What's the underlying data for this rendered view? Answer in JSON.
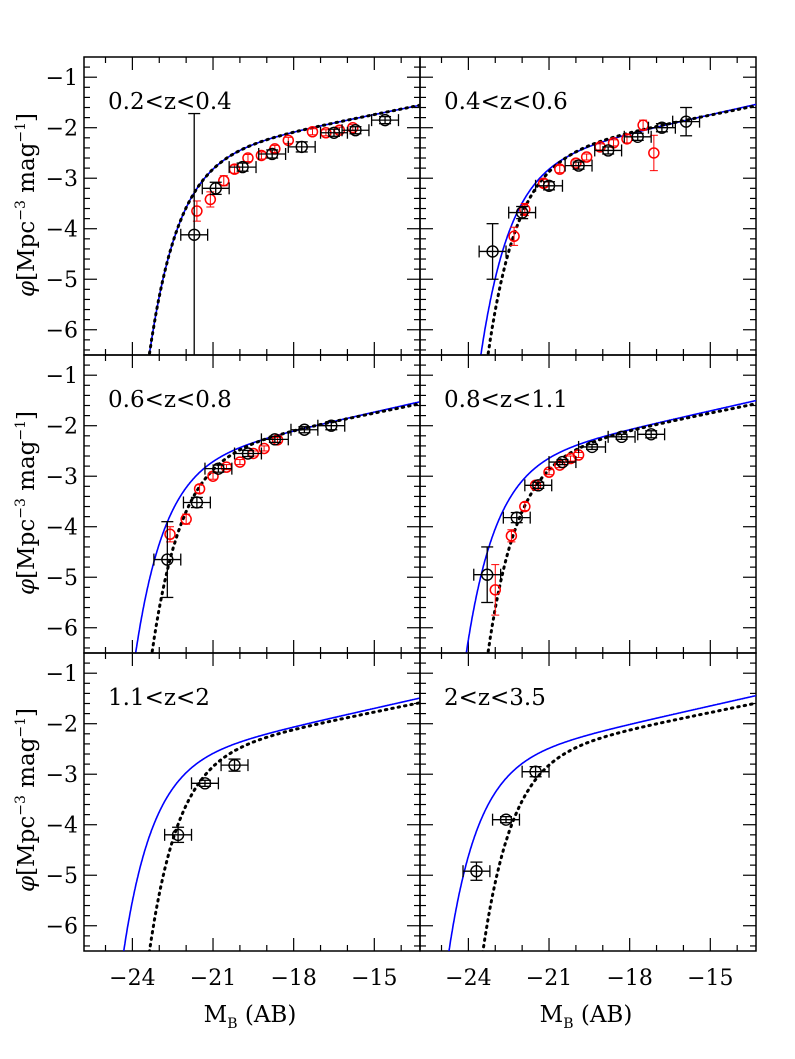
{
  "figure": {
    "ylabel": "φ[Mpc⁻³ mag⁻¹]",
    "xlabel": "M_B (AB)",
    "xlabel_main": "M",
    "xlabel_sub": "B",
    "xlabel_rest": " (AB)",
    "ylabel_phi": "φ",
    "ylabel_main": "[Mpc",
    "ylabel_exp1": "−3",
    "ylabel_mid": " mag",
    "ylabel_exp2": "−1",
    "ylabel_end": "]",
    "x_ticks": [
      "−24",
      "−21",
      "−18",
      "−15"
    ],
    "y_ticks": [
      "−1",
      "−2",
      "−3",
      "−4",
      "−5",
      "−6"
    ],
    "colors": {
      "blue_curve": "#0000ff",
      "red_points": "#ff0000",
      "black_points": "#000000",
      "dotted_curve": "#000000"
    }
  },
  "chart_data": [
    {
      "type": "scatter",
      "panel": "0.2<z<0.4",
      "title": "0.2<z<0.4",
      "xlim": [
        -25.8,
        -13.3
      ],
      "ylim": [
        -6.5,
        -0.6
      ],
      "xlabel": "",
      "ylabel": "φ[Mpc⁻³ mag⁻¹]",
      "series": [
        {
          "kind": "black_points",
          "x": [
            -21.7,
            -20.9,
            -19.9,
            -18.8,
            -17.7,
            -16.5,
            -15.7,
            -14.6
          ],
          "y": [
            -4.12,
            -3.2,
            -2.78,
            -2.52,
            -2.38,
            -2.1,
            -2.05,
            -1.85
          ],
          "xerr": [
            0.5,
            0.5,
            0.5,
            0.5,
            0.5,
            0.5,
            0.5,
            0.5
          ],
          "yerr": [
            2.4,
            0.12,
            0.08,
            0.08,
            0.1,
            0.07,
            0.07,
            0.07
          ]
        },
        {
          "kind": "red_points",
          "x": [
            -21.6,
            -21.1,
            -20.6,
            -20.2,
            -19.7,
            -19.2,
            -18.7,
            -18.2,
            -17.3,
            -16.8,
            -16.3,
            -15.8
          ],
          "y": [
            -3.65,
            -3.42,
            -3.05,
            -2.82,
            -2.6,
            -2.55,
            -2.42,
            -2.25,
            -2.08,
            -2.1,
            -2.05,
            -2.0
          ],
          "yerr": [
            0.2,
            0.15,
            0.1,
            0.08,
            0.07,
            0.07,
            0.07,
            0.06,
            0.06,
            0.06,
            0.06,
            0.06
          ]
        },
        {
          "kind": "blue_curve",
          "Mstar": -21.0,
          "phistar": -2.35,
          "alpha": -1.27
        },
        {
          "kind": "dotted_curve",
          "Mstar": -21.0,
          "phistar": -2.35,
          "alpha": -1.27
        }
      ]
    },
    {
      "type": "scatter",
      "panel": "0.4<z<0.6",
      "title": "0.4<z<0.6",
      "xlim": [
        -25.8,
        -13.3
      ],
      "ylim": [
        -6.5,
        -0.6
      ],
      "series": [
        {
          "kind": "black_points",
          "x": [
            -23.1,
            -22.0,
            -21.0,
            -19.9,
            -18.8,
            -17.7,
            -16.8,
            -15.9
          ],
          "y": [
            -4.45,
            -3.68,
            -3.15,
            -2.75,
            -2.45,
            -2.18,
            -2.0,
            -1.88
          ],
          "xerr": [
            0.5,
            0.5,
            0.5,
            0.5,
            0.5,
            0.5,
            0.5,
            0.5
          ],
          "yerr": [
            0.55,
            0.12,
            0.08,
            0.07,
            0.07,
            0.07,
            0.08,
            0.28
          ]
        },
        {
          "kind": "red_points",
          "x": [
            -22.3,
            -21.9,
            -21.2,
            -20.6,
            -20.0,
            -19.6,
            -19.1,
            -18.6,
            -18.1,
            -17.5,
            -17.1
          ],
          "y": [
            -4.15,
            -3.62,
            -3.1,
            -2.82,
            -2.7,
            -2.58,
            -2.38,
            -2.3,
            -2.22,
            -1.95,
            -2.5
          ],
          "yerr": [
            0.18,
            0.12,
            0.08,
            0.07,
            0.06,
            0.06,
            0.06,
            0.06,
            0.08,
            0.1,
            0.35
          ]
        },
        {
          "kind": "blue_curve",
          "Mstar": -21.2,
          "phistar": -2.45,
          "alpha": -1.3
        },
        {
          "kind": "dotted_curve",
          "Mstar": -20.9,
          "phistar": -2.35,
          "alpha": -1.27
        }
      ]
    },
    {
      "type": "scatter",
      "panel": "0.6<z<0.8",
      "title": "0.6<z<0.8",
      "xlim": [
        -25.8,
        -13.3
      ],
      "ylim": [
        -6.5,
        -0.6
      ],
      "xlabel": "",
      "ylabel": "φ[Mpc⁻³ mag⁻¹]",
      "series": [
        {
          "kind": "black_points",
          "x": [
            -22.7,
            -21.6,
            -20.8,
            -19.7,
            -18.7,
            -17.6,
            -16.6
          ],
          "y": [
            -4.65,
            -3.52,
            -2.85,
            -2.55,
            -2.27,
            -2.08,
            -2.0
          ],
          "xerr": [
            0.5,
            0.5,
            0.5,
            0.5,
            0.5,
            0.5,
            0.5
          ],
          "yerr": [
            0.75,
            0.1,
            0.07,
            0.06,
            0.06,
            0.06,
            0.08
          ]
        },
        {
          "kind": "red_points",
          "x": [
            -22.6,
            -22.0,
            -21.5,
            -21.0,
            -20.5,
            -20.0,
            -19.5,
            -19.1,
            -18.6
          ],
          "y": [
            -4.15,
            -3.85,
            -3.25,
            -3.0,
            -2.82,
            -2.72,
            -2.55,
            -2.45,
            -2.28
          ],
          "yerr": [
            0.15,
            0.1,
            0.08,
            0.06,
            0.05,
            0.05,
            0.05,
            0.05,
            0.05
          ]
        },
        {
          "kind": "blue_curve",
          "Mstar": -21.55,
          "phistar": -2.48,
          "alpha": -1.3
        },
        {
          "kind": "dotted_curve",
          "Mstar": -20.9,
          "phistar": -2.35,
          "alpha": -1.27
        }
      ]
    },
    {
      "type": "scatter",
      "panel": "0.8<z<1.1",
      "title": "0.8<z<1.1",
      "xlim": [
        -25.8,
        -13.3
      ],
      "ylim": [
        -6.5,
        -0.6
      ],
      "series": [
        {
          "kind": "black_points",
          "x": [
            -23.3,
            -22.2,
            -21.4,
            -20.5,
            -19.4,
            -18.3,
            -17.2
          ],
          "y": [
            -4.95,
            -3.82,
            -3.18,
            -2.72,
            -2.42,
            -2.22,
            -2.17
          ],
          "xerr": [
            0.5,
            0.5,
            0.5,
            0.5,
            0.5,
            0.5,
            0.5
          ],
          "yerr": [
            0.55,
            0.1,
            0.06,
            0.05,
            0.05,
            0.05,
            0.07
          ]
        },
        {
          "kind": "red_points",
          "x": [
            -23.0,
            -22.4,
            -21.9,
            -21.5,
            -21.0,
            -20.6,
            -20.2,
            -19.9
          ],
          "y": [
            -5.25,
            -4.18,
            -3.6,
            -3.18,
            -2.92,
            -2.78,
            -2.65,
            -2.58
          ],
          "yerr": [
            0.5,
            0.12,
            0.08,
            0.06,
            0.05,
            0.05,
            0.05,
            0.05
          ]
        },
        {
          "kind": "blue_curve",
          "Mstar": -21.75,
          "phistar": -2.48,
          "alpha": -1.3
        },
        {
          "kind": "dotted_curve",
          "Mstar": -20.9,
          "phistar": -2.35,
          "alpha": -1.27
        }
      ]
    },
    {
      "type": "scatter",
      "panel": "1.1<z<2",
      "title": "1.1<z<2",
      "xlim": [
        -25.8,
        -13.3
      ],
      "ylim": [
        -6.5,
        -0.6
      ],
      "xlabel": "M_B (AB)",
      "ylabel": "φ[Mpc⁻³ mag⁻¹]",
      "series": [
        {
          "kind": "black_points",
          "x": [
            -22.3,
            -21.3,
            -20.2
          ],
          "y": [
            -4.2,
            -3.18,
            -2.82
          ],
          "xerr": [
            0.5,
            0.5,
            0.5
          ],
          "yerr": [
            0.15,
            0.06,
            0.12
          ]
        },
        {
          "kind": "blue_curve",
          "Mstar": -22.0,
          "phistar": -2.5,
          "alpha": -1.3
        },
        {
          "kind": "dotted_curve",
          "Mstar": -21.0,
          "phistar": -2.38,
          "alpha": -1.27
        }
      ]
    },
    {
      "type": "scatter",
      "panel": "2<z<3.5",
      "title": "2<z<3.5",
      "xlim": [
        -25.8,
        -13.3
      ],
      "ylim": [
        -6.5,
        -0.6
      ],
      "xlabel": "M_B (AB)",
      "series": [
        {
          "kind": "black_points",
          "x": [
            -23.7,
            -22.6,
            -21.5
          ],
          "y": [
            -4.92,
            -3.9,
            -2.95
          ],
          "xerr": [
            0.5,
            0.5,
            0.5
          ],
          "yerr": [
            0.18,
            0.06,
            0.1
          ]
        },
        {
          "kind": "blue_curve",
          "Mstar": -22.4,
          "phistar": -2.5,
          "alpha": -1.3
        },
        {
          "kind": "dotted_curve",
          "Mstar": -21.1,
          "phistar": -2.4,
          "alpha": -1.27
        }
      ]
    }
  ]
}
